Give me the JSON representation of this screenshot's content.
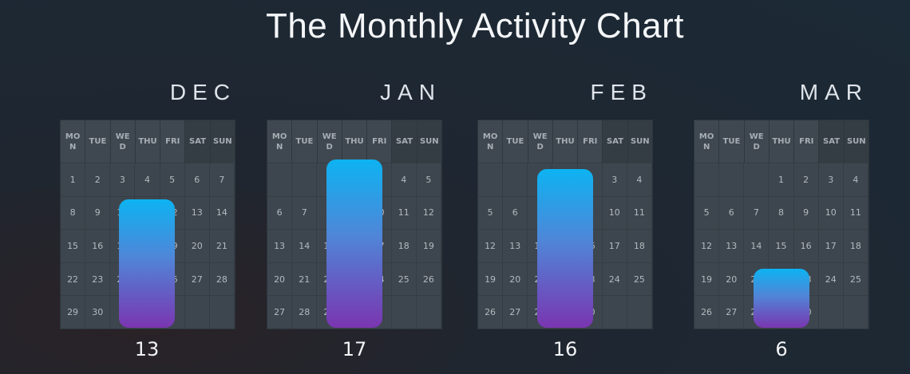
{
  "chart_data": {
    "type": "bar",
    "title": "The Monthly Activity Chart",
    "weekday_headers": [
      "MON",
      "TUE",
      "WED",
      "THU",
      "FRI",
      "SAT",
      "SUN"
    ],
    "categories": [
      "DEC",
      "JAN",
      "FEB",
      "MAR"
    ],
    "values": [
      13,
      17,
      16,
      6
    ],
    "ylim": [
      0,
      17
    ],
    "months": [
      {
        "name": "DEC",
        "value": 13,
        "start_offset": 0,
        "days": 30
      },
      {
        "name": "JAN",
        "value": 17,
        "start_offset": 2,
        "days": 30
      },
      {
        "name": "FEB",
        "value": 16,
        "start_offset": 3,
        "days": 30
      },
      {
        "name": "MAR",
        "value": 6,
        "start_offset": 3,
        "days": 30
      }
    ],
    "colors": {
      "bar_top": "#0db3f2",
      "bar_bottom": "#7a35b0"
    }
  }
}
